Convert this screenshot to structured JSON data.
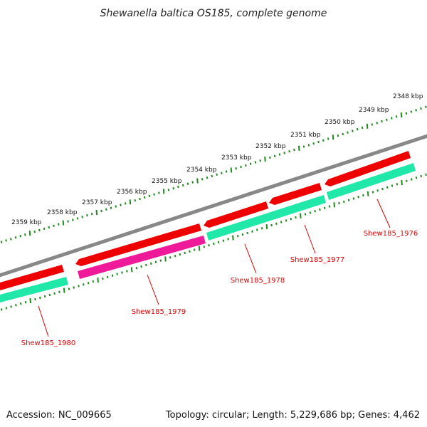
{
  "title": "Shewanella baltica OS185, complete genome",
  "footer": {
    "accession": "Accession: NC_009665",
    "summary": "Topology: circular; Length: 5,229,686 bp; Genes: 4,462"
  },
  "scale": {
    "unit": "kbp",
    "labels": [
      "2348 kbp",
      "2349 kbp",
      "2350 kbp",
      "2351 kbp",
      "2352 kbp",
      "2353 kbp",
      "2354 kbp",
      "2355 kbp",
      "2356 kbp",
      "2357 kbp",
      "2358 kbp",
      "2359 kbp"
    ]
  },
  "genes": [
    {
      "name": "Shew185_1976",
      "strand": "reverse"
    },
    {
      "name": "Shew185_1977",
      "strand": "reverse"
    },
    {
      "name": "Shew185_1978",
      "strand": "reverse"
    },
    {
      "name": "Shew185_1979",
      "strand": "reverse"
    },
    {
      "name": "Shew185_1980",
      "strand": "reverse"
    }
  ],
  "colors": {
    "backbone": "#888888",
    "cds_reverse": "#ee0000",
    "cds_track": "#20e8a8",
    "cds_highlight": "#ee1a9a",
    "ticks": "#228822",
    "gene_label": "#e00000",
    "leader_line": "#dd0000"
  }
}
